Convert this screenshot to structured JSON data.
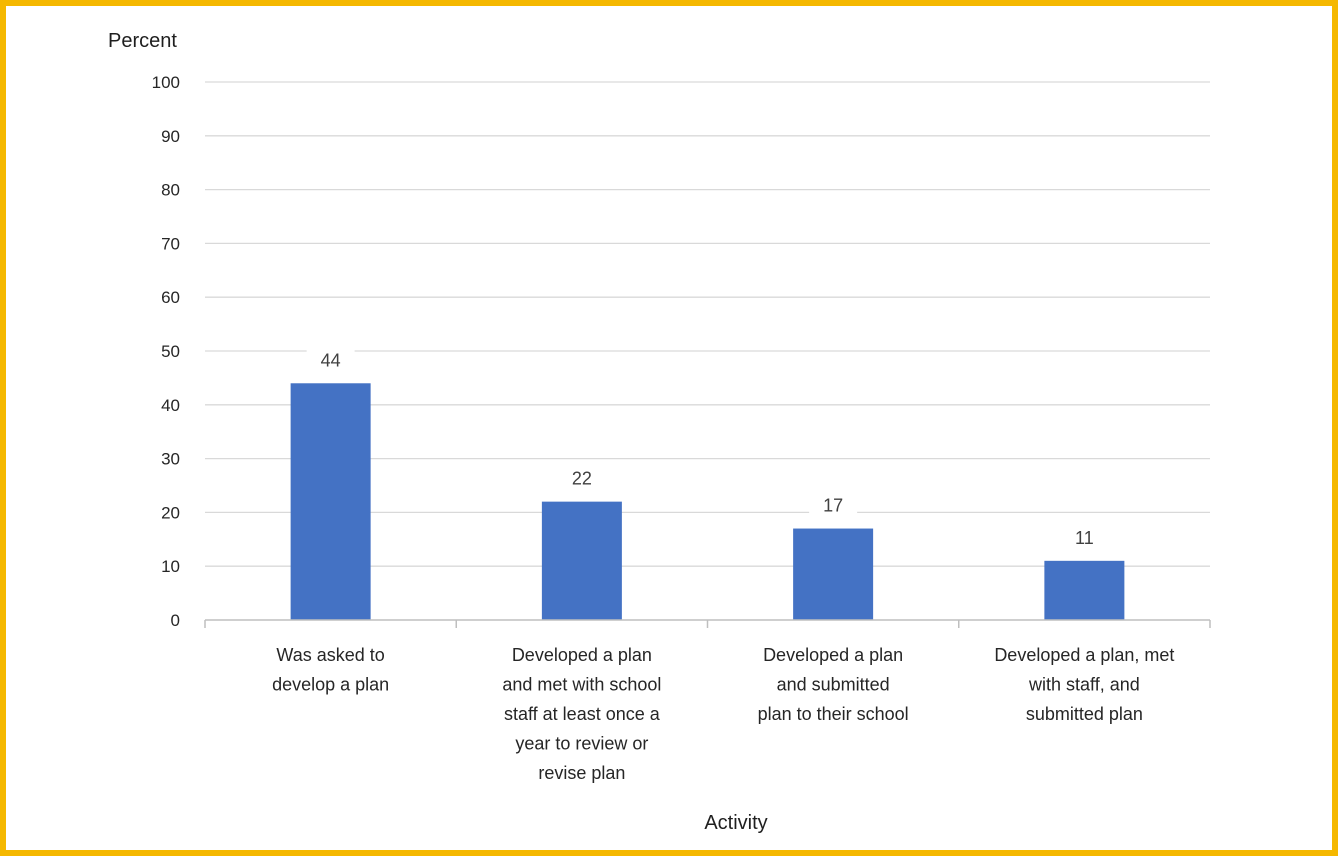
{
  "chart_data": {
    "type": "bar",
    "title": "",
    "ylabel": "Percent",
    "xlabel": "Activity",
    "ylim": [
      0,
      100
    ],
    "yticks": [
      0,
      10,
      20,
      30,
      40,
      50,
      60,
      70,
      80,
      90,
      100
    ],
    "grid": true,
    "legend": "none",
    "bar_color": "#4472C4",
    "categories": [
      [
        "Was asked to",
        "develop a plan"
      ],
      [
        "Developed a plan",
        "and met with school",
        "staff at least once a",
        "year to review or",
        "revise plan"
      ],
      [
        "Developed a plan",
        "and submitted",
        "plan to their school"
      ],
      [
        "Developed a plan, met",
        "with staff, and",
        "submitted plan"
      ]
    ],
    "values": [
      44,
      22,
      17,
      11
    ]
  },
  "colors": {
    "frame_border": "#F5B800",
    "gridline": "#D9D9D9",
    "axis": "#BFBFBF"
  }
}
